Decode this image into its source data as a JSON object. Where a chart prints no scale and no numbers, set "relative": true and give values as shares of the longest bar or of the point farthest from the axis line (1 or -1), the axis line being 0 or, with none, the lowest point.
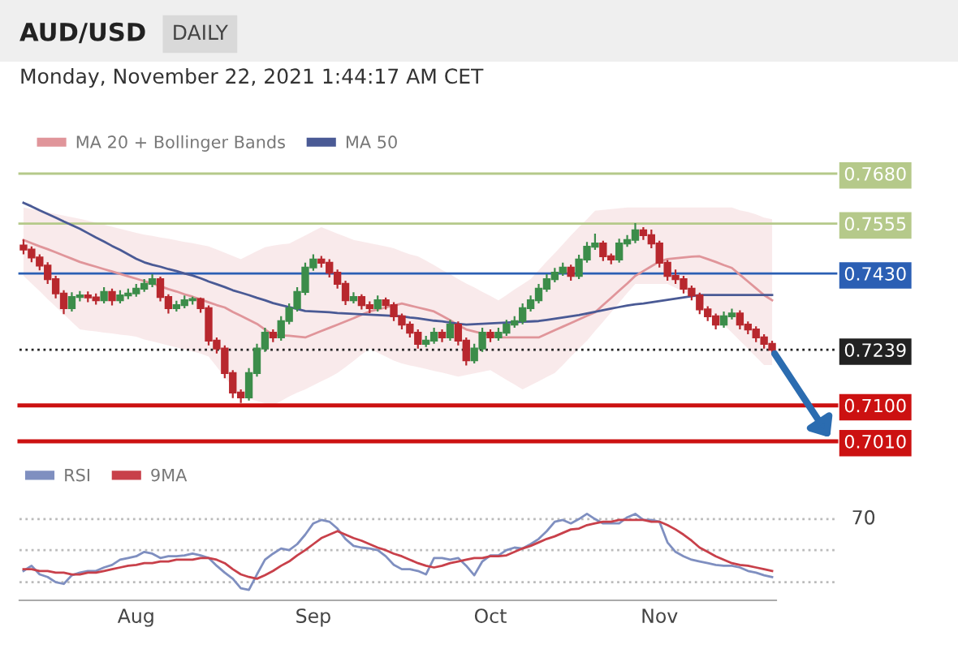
{
  "chart_data": [
    {
      "type": "candlestick",
      "title": "AUD/USD",
      "subtitle": "Monday, November 22, 2021 1:44:17 AM CET",
      "annotations": [
        "DAILY"
      ],
      "categories": [
        null,
        null,
        null,
        null,
        null,
        null,
        null,
        null,
        null,
        null,
        null,
        null,
        null,
        null,
        null,
        null,
        null,
        null,
        null,
        null,
        null,
        null,
        null,
        null,
        null,
        null,
        null,
        null,
        null,
        null,
        null,
        null,
        null,
        null,
        null,
        null,
        null,
        null,
        null,
        null,
        null,
        null,
        null,
        null,
        null,
        null,
        null,
        null,
        null,
        null,
        null,
        null,
        null,
        null,
        null,
        null,
        null,
        null,
        null,
        null,
        null,
        null,
        null,
        null,
        null,
        null,
        null,
        null,
        null,
        null,
        null,
        null,
        null,
        null,
        null,
        null,
        null,
        null,
        null,
        null,
        null,
        null,
        null,
        null,
        null,
        null,
        null,
        null,
        null,
        null,
        null,
        null,
        null,
        null
      ],
      "series": [
        {
          "name": "MA 20 + Bollinger Bands",
          "type": "line",
          "color": "#e0959a",
          "values": [
            0.7514,
            0.7506,
            0.7498,
            0.7491,
            0.7483,
            0.7475,
            0.7467,
            0.7459,
            0.7453,
            0.7447,
            0.7441,
            0.7435,
            0.7429,
            0.7423,
            0.7417,
            0.7411,
            0.7405,
            0.7398,
            0.7391,
            0.7385,
            0.7378,
            0.7372,
            0.7365,
            0.7358,
            0.7351,
            0.7345,
            0.7334,
            0.7324,
            0.7314,
            0.7304,
            0.729,
            0.7276,
            0.7275,
            0.7274,
            0.7272,
            0.727,
            0.7278,
            0.7286,
            0.7294,
            0.7302,
            0.731,
            0.7318,
            0.7327,
            0.7335,
            0.734,
            0.7345,
            0.735,
            0.7355,
            0.735,
            0.7345,
            0.734,
            0.7335,
            0.7324,
            0.7313,
            0.7301,
            0.729,
            0.7285,
            0.728,
            0.7275,
            0.727,
            0.727,
            0.727,
            0.727,
            0.727,
            0.727,
            0.7279,
            0.7288,
            0.7297,
            0.7306,
            0.7315,
            0.7324,
            0.7333,
            0.7351,
            0.7369,
            0.7387,
            0.7405,
            0.7424,
            0.7436,
            0.7448,
            0.746,
            0.7466,
            0.7468,
            0.747,
            0.7472,
            0.7473,
            0.7466,
            0.7459,
            0.7451,
            0.7444,
            0.7427,
            0.741,
            0.7393,
            0.7376,
            0.7363
          ],
          "upper": [
            0.7595,
            0.7591,
            0.7587,
            0.7583,
            0.7579,
            0.7575,
            0.7571,
            0.7567,
            0.7562,
            0.7557,
            0.7552,
            0.7547,
            0.7542,
            0.7537,
            0.7532,
            0.7527,
            0.7524,
            0.752,
            0.7517,
            0.7513,
            0.7509,
            0.7506,
            0.7502,
            0.7498,
            0.749,
            0.7482,
            0.7474,
            0.7466,
            0.7476,
            0.7486,
            0.7496,
            0.75,
            0.7503,
            0.7505,
            0.7515,
            0.7525,
            0.7536,
            0.7546,
            0.7538,
            0.753,
            0.7522,
            0.7514,
            0.751,
            0.7506,
            0.7502,
            0.7498,
            0.7493,
            0.7485,
            0.7478,
            0.7473,
            0.7462,
            0.7451,
            0.7439,
            0.7428,
            0.7416,
            0.7405,
            0.7395,
            0.7384,
            0.7374,
            0.7363,
            0.7376,
            0.739,
            0.7403,
            0.7416,
            0.7438,
            0.746,
            0.7481,
            0.7503,
            0.7525,
            0.7546,
            0.7566,
            0.7587,
            0.7589,
            0.7591,
            0.7593,
            0.7595,
            0.7595,
            0.7595,
            0.7595,
            0.7595,
            0.7595,
            0.7595,
            0.7595,
            0.7595,
            0.7595,
            0.7595,
            0.7595,
            0.7595,
            0.7595,
            0.7588,
            0.7584,
            0.7578,
            0.757,
            0.7566
          ],
          "lower": [
            0.7424,
            0.7405,
            0.7386,
            0.7366,
            0.7347,
            0.7328,
            0.7309,
            0.729,
            0.7287,
            0.7285,
            0.7282,
            0.728,
            0.7277,
            0.7275,
            0.7272,
            0.7265,
            0.726,
            0.7255,
            0.725,
            0.7245,
            0.724,
            0.7235,
            0.723,
            0.7222,
            0.7197,
            0.7171,
            0.7146,
            0.7121,
            0.7116,
            0.7111,
            0.7105,
            0.71,
            0.7111,
            0.7122,
            0.7132,
            0.714,
            0.715,
            0.716,
            0.717,
            0.7181,
            0.7196,
            0.7211,
            0.7227,
            0.7242,
            0.7232,
            0.7222,
            0.7212,
            0.7205,
            0.72,
            0.7196,
            0.7191,
            0.7186,
            0.7182,
            0.7177,
            0.7172,
            0.7176,
            0.718,
            0.7184,
            0.7188,
            0.7176,
            0.7164,
            0.7152,
            0.714,
            0.715,
            0.716,
            0.7171,
            0.7181,
            0.7201,
            0.7222,
            0.7242,
            0.7262,
            0.7286,
            0.7309,
            0.7333,
            0.7357,
            0.7381,
            0.7404,
            0.7404,
            0.7404,
            0.7404,
            0.7404,
            0.7394,
            0.7384,
            0.7373,
            0.7363,
            0.7343,
            0.7323,
            0.7302,
            0.7282,
            0.7262,
            0.7242,
            0.7221,
            0.7201,
            0.7201
          ]
        },
        {
          "name": "MA 50",
          "type": "line",
          "color": "#4a5a95",
          "values": [
            0.7607,
            0.7598,
            0.7588,
            0.7579,
            0.757,
            0.756,
            0.7551,
            0.7542,
            0.7531,
            0.752,
            0.751,
            0.7499,
            0.7489,
            0.7478,
            0.7467,
            0.7458,
            0.7452,
            0.7447,
            0.7441,
            0.7436,
            0.743,
            0.7425,
            0.7418,
            0.741,
            0.7403,
            0.7396,
            0.7388,
            0.7382,
            0.7376,
            0.7369,
            0.7363,
            0.7356,
            0.7351,
            0.7346,
            0.7341,
            0.7336,
            0.7335,
            0.7334,
            0.7333,
            0.7331,
            0.733,
            0.7329,
            0.7328,
            0.7327,
            0.7326,
            0.7325,
            0.7324,
            0.7323,
            0.732,
            0.7318,
            0.7315,
            0.7312,
            0.731,
            0.7307,
            0.7304,
            0.7302,
            0.7303,
            0.7304,
            0.7305,
            0.7306,
            0.7307,
            0.7308,
            0.7309,
            0.731,
            0.7311,
            0.7314,
            0.7317,
            0.732,
            0.7323,
            0.7326,
            0.733,
            0.7334,
            0.7338,
            0.7342,
            0.7346,
            0.735,
            0.7353,
            0.7355,
            0.7358,
            0.7361,
            0.7364,
            0.7367,
            0.737,
            0.7373,
            0.7376,
            0.7376,
            0.7376,
            0.7376,
            0.7376,
            0.7376,
            0.7376,
            0.7376,
            0.7376,
            0.7376
          ]
        }
      ],
      "ohlc": [
        [
          0.75,
          0.7515,
          0.7478,
          0.749
        ],
        [
          0.749,
          0.7498,
          0.7458,
          0.747
        ],
        [
          0.747,
          0.7478,
          0.7438,
          0.745
        ],
        [
          0.745,
          0.7458,
          0.7404,
          0.7416
        ],
        [
          0.7416,
          0.7424,
          0.7368,
          0.738
        ],
        [
          0.738,
          0.7388,
          0.7328,
          0.7343
        ],
        [
          0.7343,
          0.7383,
          0.7335,
          0.7371
        ],
        [
          0.7371,
          0.7386,
          0.736,
          0.7375
        ],
        [
          0.7375,
          0.7385,
          0.7358,
          0.737
        ],
        [
          0.737,
          0.738,
          0.7352,
          0.7363
        ],
        [
          0.7363,
          0.7396,
          0.7355,
          0.7384
        ],
        [
          0.7384,
          0.7392,
          0.735,
          0.7363
        ],
        [
          0.7363,
          0.7388,
          0.7355,
          0.7375
        ],
        [
          0.7375,
          0.7392,
          0.7366,
          0.738
        ],
        [
          0.738,
          0.7404,
          0.7372,
          0.7392
        ],
        [
          0.7392,
          0.7416,
          0.7384,
          0.7404
        ],
        [
          0.7404,
          0.7428,
          0.7396,
          0.7416
        ],
        [
          0.7416,
          0.7422,
          0.736,
          0.7371
        ],
        [
          0.7371,
          0.7378,
          0.733,
          0.7343
        ],
        [
          0.7343,
          0.7362,
          0.7335,
          0.7351
        ],
        [
          0.7351,
          0.7375,
          0.7343,
          0.7363
        ],
        [
          0.7363,
          0.7372,
          0.7352,
          0.7366
        ],
        [
          0.7366,
          0.737,
          0.7332,
          0.7343
        ],
        [
          0.7343,
          0.735,
          0.725,
          0.7262
        ],
        [
          0.7262,
          0.727,
          0.723,
          0.7242
        ],
        [
          0.7242,
          0.725,
          0.7168,
          0.7181
        ],
        [
          0.7181,
          0.7188,
          0.7118,
          0.7132
        ],
        [
          0.7132,
          0.714,
          0.7106,
          0.712
        ],
        [
          0.712,
          0.7193,
          0.7112,
          0.7181
        ],
        [
          0.7181,
          0.7254,
          0.7172,
          0.7242
        ],
        [
          0.7242,
          0.7294,
          0.7234,
          0.7282
        ],
        [
          0.7282,
          0.729,
          0.7258,
          0.727
        ],
        [
          0.727,
          0.7323,
          0.7262,
          0.7311
        ],
        [
          0.7311,
          0.7355,
          0.7303,
          0.7343
        ],
        [
          0.7343,
          0.7396,
          0.7335,
          0.7384
        ],
        [
          0.7384,
          0.7457,
          0.7376,
          0.7445
        ],
        [
          0.7445,
          0.7478,
          0.7437,
          0.7465
        ],
        [
          0.7465,
          0.7474,
          0.7445,
          0.7457
        ],
        [
          0.7457,
          0.7466,
          0.742,
          0.7432
        ],
        [
          0.7432,
          0.744,
          0.7392,
          0.7404
        ],
        [
          0.7404,
          0.7412,
          0.7351,
          0.7363
        ],
        [
          0.7363,
          0.7383,
          0.7355,
          0.7371
        ],
        [
          0.7371,
          0.7378,
          0.734,
          0.7351
        ],
        [
          0.7351,
          0.736,
          0.7331,
          0.7343
        ],
        [
          0.7343,
          0.7375,
          0.7335,
          0.7363
        ],
        [
          0.7363,
          0.737,
          0.734,
          0.7351
        ],
        [
          0.7351,
          0.7358,
          0.7311,
          0.7323
        ],
        [
          0.7323,
          0.733,
          0.729,
          0.7302
        ],
        [
          0.7302,
          0.731,
          0.727,
          0.7282
        ],
        [
          0.7282,
          0.729,
          0.7242,
          0.7254
        ],
        [
          0.7254,
          0.7274,
          0.7246,
          0.7262
        ],
        [
          0.7262,
          0.7294,
          0.7254,
          0.7282
        ],
        [
          0.7282,
          0.729,
          0.7258,
          0.727
        ],
        [
          0.727,
          0.7314,
          0.7262,
          0.7302
        ],
        [
          0.7302,
          0.731,
          0.725,
          0.7262
        ],
        [
          0.7262,
          0.727,
          0.72,
          0.7213
        ],
        [
          0.7213,
          0.7254,
          0.7205,
          0.7242
        ],
        [
          0.7242,
          0.7294,
          0.7234,
          0.7282
        ],
        [
          0.7282,
          0.729,
          0.7258,
          0.727
        ],
        [
          0.727,
          0.7294,
          0.7262,
          0.7282
        ],
        [
          0.7282,
          0.7314,
          0.7274,
          0.7302
        ],
        [
          0.7302,
          0.7323,
          0.7294,
          0.7311
        ],
        [
          0.7311,
          0.7355,
          0.7303,
          0.7343
        ],
        [
          0.7343,
          0.7375,
          0.7335,
          0.7363
        ],
        [
          0.7363,
          0.7404,
          0.7355,
          0.7392
        ],
        [
          0.7392,
          0.7428,
          0.7384,
          0.7416
        ],
        [
          0.7416,
          0.7444,
          0.7408,
          0.7432
        ],
        [
          0.7432,
          0.7457,
          0.7424,
          0.7445
        ],
        [
          0.7445,
          0.7452,
          0.7412,
          0.7424
        ],
        [
          0.7424,
          0.7477,
          0.7416,
          0.7465
        ],
        [
          0.7465,
          0.7509,
          0.7457,
          0.7497
        ],
        [
          0.7497,
          0.753,
          0.7489,
          0.7505
        ],
        [
          0.7505,
          0.7512,
          0.7461,
          0.7473
        ],
        [
          0.7473,
          0.748,
          0.7453,
          0.7465
        ],
        [
          0.7465,
          0.7517,
          0.7457,
          0.7505
        ],
        [
          0.7505,
          0.7526,
          0.7497,
          0.7514
        ],
        [
          0.7514,
          0.7556,
          0.7506,
          0.7538
        ],
        [
          0.7538,
          0.7546,
          0.7514,
          0.7526
        ],
        [
          0.7526,
          0.754,
          0.7493,
          0.7505
        ],
        [
          0.7505,
          0.7512,
          0.7445,
          0.7457
        ],
        [
          0.7457,
          0.7464,
          0.7412,
          0.7424
        ],
        [
          0.7424,
          0.744,
          0.7404,
          0.7416
        ],
        [
          0.7416,
          0.7424,
          0.738,
          0.7392
        ],
        [
          0.7392,
          0.74,
          0.7363,
          0.7375
        ],
        [
          0.7375,
          0.7382,
          0.7328,
          0.734
        ],
        [
          0.734,
          0.7348,
          0.7311,
          0.7323
        ],
        [
          0.7323,
          0.733,
          0.729,
          0.7302
        ],
        [
          0.7302,
          0.7335,
          0.7294,
          0.7323
        ],
        [
          0.7323,
          0.7342,
          0.7315,
          0.733
        ],
        [
          0.733,
          0.7338,
          0.729,
          0.7302
        ],
        [
          0.7302,
          0.731,
          0.7278,
          0.729
        ],
        [
          0.729,
          0.7298,
          0.7258,
          0.727
        ],
        [
          0.727,
          0.7278,
          0.7242,
          0.7254
        ],
        [
          0.7254,
          0.7262,
          0.723,
          0.7239
        ]
      ],
      "colors": [
        "#b8282e",
        "#b8282e",
        "#b8282e",
        "#b8282e",
        "#b8282e",
        "#b8282e",
        "#3c8d4a",
        "#3c8d4a",
        "#b8282e",
        "#b8282e",
        "#3c8d4a",
        "#b8282e",
        "#3c8d4a",
        "#3c8d4a",
        "#3c8d4a",
        "#3c8d4a",
        "#3c8d4a",
        "#b8282e",
        "#b8282e",
        "#3c8d4a",
        "#3c8d4a",
        "#3c8d4a",
        "#b8282e",
        "#b8282e",
        "#b8282e",
        "#b8282e",
        "#b8282e",
        "#b8282e",
        "#3c8d4a",
        "#3c8d4a",
        "#3c8d4a",
        "#b8282e",
        "#3c8d4a",
        "#3c8d4a",
        "#3c8d4a",
        "#3c8d4a",
        "#3c8d4a",
        "#b8282e",
        "#b8282e",
        "#b8282e",
        "#b8282e",
        "#3c8d4a",
        "#b8282e",
        "#b8282e",
        "#3c8d4a",
        "#b8282e",
        "#b8282e",
        "#b8282e",
        "#b8282e",
        "#b8282e",
        "#3c8d4a",
        "#3c8d4a",
        "#b8282e",
        "#3c8d4a",
        "#b8282e",
        "#b8282e",
        "#3c8d4a",
        "#3c8d4a",
        "#b8282e",
        "#3c8d4a",
        "#3c8d4a",
        "#3c8d4a",
        "#3c8d4a",
        "#3c8d4a",
        "#3c8d4a",
        "#3c8d4a",
        "#3c8d4a",
        "#3c8d4a",
        "#b8282e",
        "#3c8d4a",
        "#3c8d4a",
        "#3c8d4a",
        "#b8282e",
        "#b8282e",
        "#3c8d4a",
        "#3c8d4a",
        "#3c8d4a",
        "#b8282e",
        "#b8282e",
        "#b8282e",
        "#b8282e",
        "#b8282e",
        "#b8282e",
        "#b8282e",
        "#b8282e",
        "#b8282e",
        "#b8282e",
        "#3c8d4a",
        "#3c8d4a",
        "#b8282e",
        "#b8282e",
        "#b8282e",
        "#b8282e",
        "#b8282e"
      ],
      "ylim": [
        0.701,
        0.768
      ],
      "yticks": [
        {
          "value": 0.768,
          "label": "0.7680"
        },
        {
          "value": 0.7555,
          "label": "0.7555"
        },
        {
          "value": 0.743,
          "label": "0.7430"
        },
        {
          "value": 0.7239,
          "label": "0.7239"
        },
        {
          "value": 0.71,
          "label": "0.7100"
        },
        {
          "value": 0.701,
          "label": "0.7010"
        }
      ],
      "ref_lines": [
        {
          "axis": "y",
          "value": 0.768,
          "label": null,
          "color": "#b5c98a",
          "line_style": "solid"
        },
        {
          "axis": "y",
          "value": 0.7555,
          "label": null,
          "color": "#b5c98a",
          "line_style": "solid"
        },
        {
          "axis": "y",
          "value": 0.743,
          "label": null,
          "color": "#2b5fb4",
          "line_style": "solid"
        },
        {
          "axis": "y",
          "value": 0.7239,
          "label": null,
          "color": "#222222",
          "line_style": "dotted"
        },
        {
          "axis": "y",
          "value": 0.71,
          "label": null,
          "color": "#cc1111",
          "line_style": "solid"
        },
        {
          "axis": "y",
          "value": 0.701,
          "label": null,
          "color": "#cc1111",
          "line_style": "solid"
        }
      ],
      "tick_labels": "y",
      "legend": "top left"
    },
    {
      "type": "line",
      "categories": [
        null,
        null,
        null,
        null,
        null,
        null,
        null,
        null,
        null,
        null,
        null,
        null,
        null,
        null,
        "Aug",
        null,
        null,
        null,
        null,
        null,
        null,
        null,
        null,
        null,
        null,
        null,
        null,
        null,
        null,
        null,
        null,
        null,
        null,
        null,
        null,
        null,
        "Sep",
        null,
        null,
        null,
        null,
        null,
        null,
        null,
        null,
        null,
        null,
        null,
        null,
        null,
        null,
        null,
        null,
        null,
        null,
        null,
        null,
        null,
        "Oct",
        null,
        null,
        null,
        null,
        null,
        null,
        null,
        null,
        null,
        null,
        null,
        null,
        null,
        null,
        null,
        null,
        null,
        null,
        null,
        null,
        "Nov",
        null,
        null,
        null,
        null,
        null,
        null,
        null,
        null,
        null,
        null,
        null,
        null,
        null,
        null
      ],
      "series": [
        {
          "name": "RSI",
          "color": "#7f8fc0",
          "values": [
            0.34,
            0.4,
            0.3,
            0.27,
            0.21,
            0.19,
            0.29,
            0.32,
            0.34,
            0.34,
            0.38,
            0.41,
            0.47,
            0.49,
            0.51,
            0.56,
            0.54,
            0.49,
            0.51,
            0.51,
            0.52,
            0.54,
            0.52,
            0.49,
            0.4,
            0.32,
            0.25,
            0.14,
            0.12,
            0.3,
            0.47,
            0.54,
            0.6,
            0.58,
            0.65,
            0.76,
            0.89,
            0.93,
            0.91,
            0.83,
            0.71,
            0.63,
            0.61,
            0.6,
            0.58,
            0.51,
            0.41,
            0.36,
            0.36,
            0.34,
            0.3,
            0.49,
            0.49,
            0.47,
            0.49,
            0.4,
            0.29,
            0.45,
            0.52,
            0.52,
            0.58,
            0.61,
            0.6,
            0.65,
            0.71,
            0.8,
            0.91,
            0.93,
            0.89,
            0.94,
            1,
            0.94,
            0.89,
            0.89,
            0.89,
            0.96,
            1,
            0.93,
            0.93,
            0.91,
            0.67,
            0.56,
            0.51,
            0.47,
            0.45,
            0.43,
            0.41,
            0.4,
            0.4,
            0.38,
            0.34,
            0.32,
            0.29,
            0.27
          ]
        },
        {
          "name": "9MA",
          "color": "#c8404a",
          "values": [
            0.36,
            0.36,
            0.34,
            0.34,
            0.32,
            0.32,
            0.3,
            0.3,
            0.32,
            0.32,
            0.34,
            0.36,
            0.38,
            0.4,
            0.41,
            0.43,
            0.43,
            0.45,
            0.45,
            0.47,
            0.47,
            0.47,
            0.49,
            0.49,
            0.47,
            0.43,
            0.36,
            0.3,
            0.27,
            0.25,
            0.29,
            0.34,
            0.4,
            0.45,
            0.52,
            0.58,
            0.65,
            0.72,
            0.76,
            0.8,
            0.76,
            0.72,
            0.69,
            0.65,
            0.61,
            0.58,
            0.54,
            0.51,
            0.47,
            0.43,
            0.4,
            0.38,
            0.4,
            0.43,
            0.45,
            0.47,
            0.49,
            0.49,
            0.51,
            0.51,
            0.52,
            0.56,
            0.6,
            0.63,
            0.67,
            0.71,
            0.74,
            0.78,
            0.82,
            0.83,
            0.87,
            0.89,
            0.91,
            0.91,
            0.93,
            0.93,
            0.93,
            0.93,
            0.91,
            0.91,
            0.87,
            0.82,
            0.76,
            0.69,
            0.61,
            0.56,
            0.51,
            0.47,
            0.43,
            0.41,
            0.4,
            0.38,
            0.36,
            0.34
          ]
        }
      ],
      "relative": true,
      "annotations": [
        "70"
      ],
      "ref_lines": [
        {
          "axis": "y",
          "value": 0.94,
          "label": null,
          "color": "#bbbbbb",
          "line_style": "dotted"
        },
        {
          "axis": "y",
          "value": 0.58,
          "label": null,
          "color": "#bbbbbb",
          "line_style": "dotted"
        },
        {
          "axis": "y",
          "value": 0.21,
          "label": null,
          "color": "#bbbbbb",
          "line_style": "dotted"
        }
      ],
      "legend": "top left"
    }
  ]
}
